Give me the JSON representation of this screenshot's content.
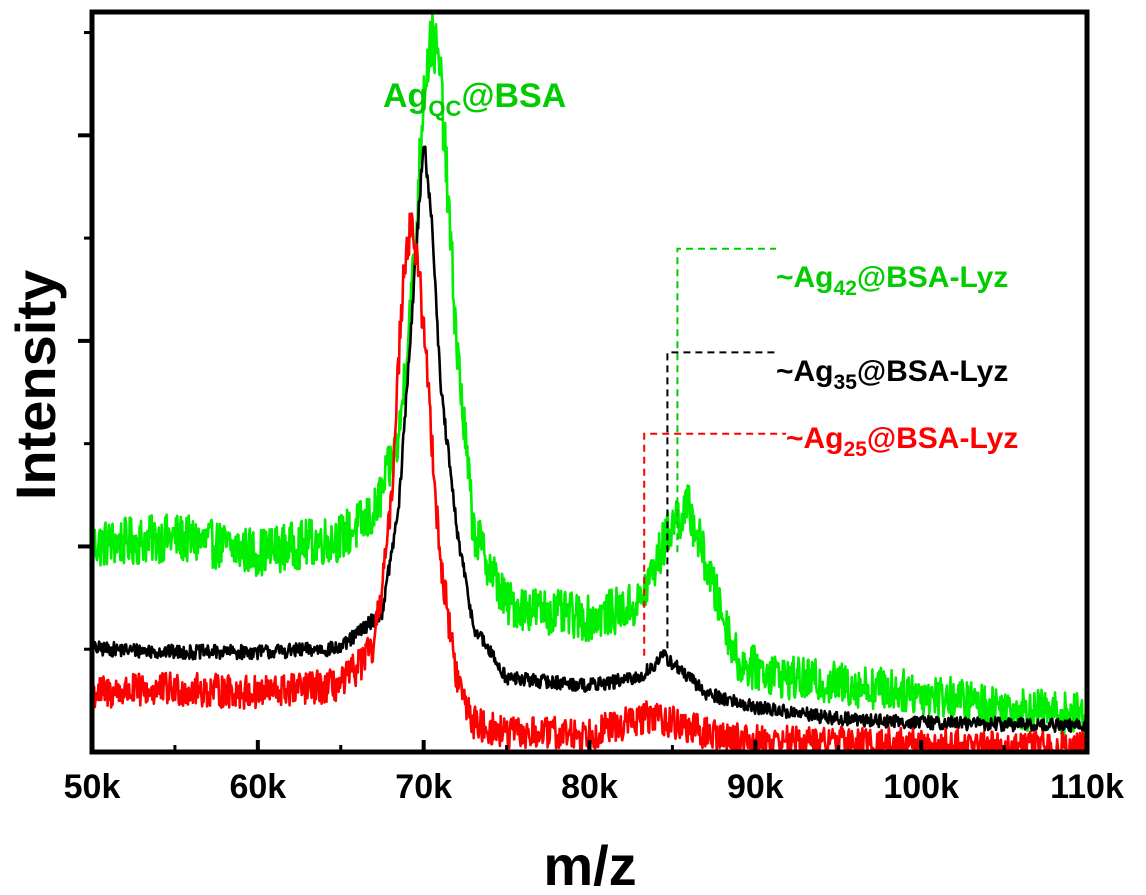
{
  "chart_data": {
    "type": "line",
    "xlabel": "m/z",
    "ylabel": "Intensity",
    "xlim": [
      50000,
      110000
    ],
    "ylim": [
      0,
      1
    ],
    "x_ticks": [
      {
        "value": 50000,
        "label": "50k"
      },
      {
        "value": 60000,
        "label": "60k"
      },
      {
        "value": 70000,
        "label": "70k"
      },
      {
        "value": 80000,
        "label": "80k"
      },
      {
        "value": 90000,
        "label": "90k"
      },
      {
        "value": 100000,
        "label": "100k"
      },
      {
        "value": 110000,
        "label": "110k"
      }
    ],
    "y_tick_labels": false,
    "grid": false,
    "series": [
      {
        "color": "#00ee00",
        "x": [
          50000,
          55000,
          60000,
          65000,
          67000,
          68500,
          69500,
          70000,
          70500,
          71000,
          72000,
          73000,
          75000,
          80000,
          83000,
          85000,
          86000,
          87500,
          89000,
          92000,
          100000,
          105000,
          110000
        ],
        "y": [
          0.28,
          0.29,
          0.27,
          0.29,
          0.32,
          0.42,
          0.68,
          0.9,
          0.97,
          0.92,
          0.55,
          0.3,
          0.2,
          0.18,
          0.2,
          0.31,
          0.33,
          0.22,
          0.12,
          0.1,
          0.08,
          0.06,
          0.05
        ],
        "noise": 0.028
      },
      {
        "color": "#000000",
        "x": [
          50000,
          55000,
          60000,
          65000,
          67500,
          68500,
          69500,
          70000,
          70500,
          71000,
          72000,
          73000,
          75000,
          80000,
          83000,
          84500,
          85500,
          87000,
          90000,
          95000,
          100000,
          110000
        ],
        "y": [
          0.14,
          0.135,
          0.135,
          0.14,
          0.19,
          0.33,
          0.66,
          0.83,
          0.72,
          0.5,
          0.3,
          0.17,
          0.1,
          0.09,
          0.1,
          0.13,
          0.11,
          0.08,
          0.06,
          0.045,
          0.04,
          0.035
        ],
        "noise": 0.009
      },
      {
        "color": "#ff0000",
        "x": [
          50000,
          55000,
          60000,
          65000,
          67000,
          68000,
          68800,
          69300,
          70000,
          70500,
          71000,
          72000,
          73000,
          75000,
          80000,
          84000,
          85000,
          87000,
          90000,
          100000,
          110000
        ],
        "y": [
          0.08,
          0.085,
          0.08,
          0.09,
          0.14,
          0.32,
          0.66,
          0.72,
          0.58,
          0.42,
          0.26,
          0.1,
          0.04,
          0.025,
          0.025,
          0.05,
          0.04,
          0.025,
          0.015,
          0.01,
          0.005
        ],
        "noise": 0.022
      }
    ],
    "annotations": [
      {
        "text_pre": "Ag",
        "sub": "QC",
        "text_post": "@BSA",
        "color": "#00cc00"
      },
      {
        "text_pre": "~Ag",
        "sub": "42",
        "text_post": "@BSA-Lyz",
        "color": "#00cc00",
        "marker_x": 85300,
        "marker_y": 0.68
      },
      {
        "text_pre": "~Ag",
        "sub": "35",
        "text_post": "@BSA-Lyz",
        "color": "#000000",
        "marker_x": 84700,
        "marker_y": 0.54
      },
      {
        "text_pre": "~Ag",
        "sub": "25",
        "text_post": "@BSA-Lyz",
        "color": "#ff0000",
        "marker_x": 83300,
        "marker_y": 0.43
      }
    ]
  }
}
